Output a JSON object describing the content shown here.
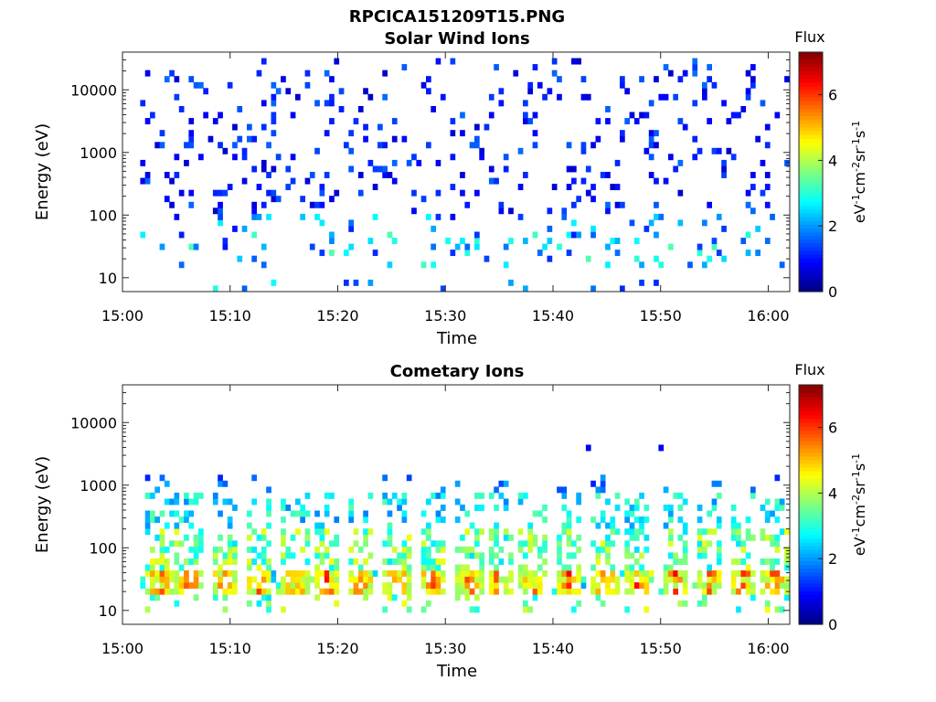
{
  "figure_title": "RPCICA151209T15.PNG",
  "colors": {
    "axis": "#262626",
    "colormap": [
      "#00007f",
      "#0000ff",
      "#007fff",
      "#00ffff",
      "#7fff7f",
      "#ffff00",
      "#ff7f00",
      "#ff0000",
      "#7f0000"
    ]
  },
  "chart_data": [
    {
      "type": "heatmap",
      "title": "Solar Wind Ions",
      "xlabel": "Time",
      "ylabel": "Energy (eV)",
      "xlim": [
        "15:00",
        "16:02"
      ],
      "x_ticks": [
        "15:00",
        "15:10",
        "15:20",
        "15:30",
        "15:40",
        "15:50",
        "16:00"
      ],
      "yscale": "log",
      "ylim": [
        6,
        40000
      ],
      "y_ticks": [
        "10",
        "100",
        "1000",
        "10000"
      ],
      "colorbar": {
        "label": "Flux",
        "units": "eV-1cm-2sr-1s-1",
        "range": [
          0,
          7.3
        ],
        "ticks": [
          "0",
          "2",
          "4",
          "6"
        ]
      },
      "grid": false,
      "description_of_values": "sparse pixels; mostly flux 0.5-1.5 above 100 eV; flux 1.5-3.2 in 15-60 eV band"
    },
    {
      "type": "heatmap",
      "title": "Cometary Ions",
      "xlabel": "Time",
      "ylabel": "Energy (eV)",
      "xlim": [
        "15:00",
        "16:02"
      ],
      "x_ticks": [
        "15:00",
        "15:10",
        "15:20",
        "15:30",
        "15:40",
        "15:50",
        "16:00"
      ],
      "yscale": "log",
      "ylim": [
        6,
        40000
      ],
      "y_ticks": [
        "10",
        "100",
        "1000",
        "10000"
      ],
      "colorbar": {
        "label": "Flux",
        "units": "eV-1cm-2sr-1s-1",
        "range": [
          0,
          7.3
        ],
        "ticks": [
          "0",
          "2",
          "4",
          "6"
        ]
      },
      "grid": false,
      "burst_centers_min": [
        3.2,
        6.0,
        9.2,
        12.4,
        15.8,
        18.8,
        22.0,
        25.3,
        28.5,
        32.0,
        34.8,
        37.9,
        41.2,
        44.6,
        47.6,
        51.2,
        54.4,
        57.5,
        60.4
      ],
      "burst_peak_energy_eV": [
        20,
        45
      ],
      "burst_peak_flux": 6.5
    }
  ]
}
